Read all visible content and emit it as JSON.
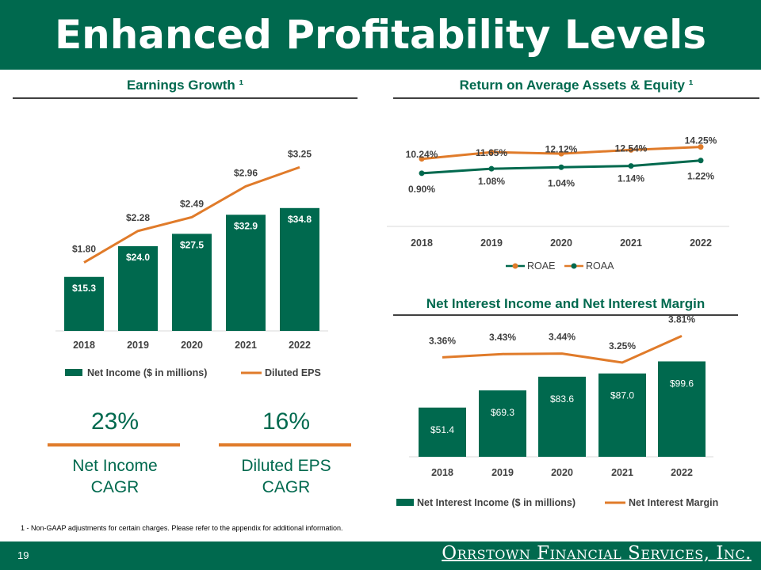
{
  "title": "Enhanced Profitability Levels",
  "page_number": "19",
  "footnote": "1 - Non-GAAP adjustments for certain charges. Please refer to the appendix for additional information.",
  "logo_text": "Orrstown Financial Services, Inc.",
  "colors": {
    "brand_green": "#00694e",
    "orange": "#e07b2a"
  },
  "cagr": [
    {
      "value": "23%",
      "label_line1": "Net Income",
      "label_line2": "CAGR"
    },
    {
      "value": "16%",
      "label_line1": "Diluted EPS",
      "label_line2": "CAGR"
    }
  ],
  "chart_data": [
    {
      "type": "bar+line",
      "title": "Earnings Growth ¹",
      "categories": [
        "2018",
        "2019",
        "2020",
        "2021",
        "2022"
      ],
      "series": [
        {
          "name": "Net Income ($ in millions)",
          "kind": "bar",
          "values": [
            15.3,
            24.0,
            27.5,
            32.9,
            34.8
          ],
          "labels": [
            "$15.3",
            "$24.0",
            "$27.5",
            "$32.9",
            "$34.8"
          ]
        },
        {
          "name": "Diluted EPS",
          "kind": "line",
          "values": [
            1.8,
            2.28,
            2.49,
            2.96,
            3.25
          ],
          "labels": [
            "$1.80",
            "$2.28",
            "$2.49",
            "$2.96",
            "$3.25"
          ]
        }
      ],
      "legend": "bottom"
    },
    {
      "type": "line",
      "title": "Return on Average Assets & Equity ¹",
      "categories": [
        "2018",
        "2019",
        "2020",
        "2021",
        "2022"
      ],
      "series": [
        {
          "name": "ROAE",
          "values": [
            10.24,
            11.65,
            12.12,
            12.54,
            14.25
          ],
          "labels": [
            "10.24%",
            "11.65%",
            "12.12%",
            "12.54%",
            "14.25%"
          ]
        },
        {
          "name": "ROAA",
          "values": [
            0.9,
            1.08,
            1.04,
            1.14,
            1.22
          ],
          "labels": [
            "0.90%",
            "1.08%",
            "1.04%",
            "1.14%",
            "1.22%"
          ]
        }
      ],
      "legend": "bottom"
    },
    {
      "type": "bar+line",
      "title": "Net Interest Income and Net Interest Margin",
      "categories": [
        "2018",
        "2019",
        "2020",
        "2021",
        "2022"
      ],
      "series": [
        {
          "name": "Net Interest Income ($ in millions)",
          "kind": "bar",
          "values": [
            51.4,
            69.3,
            83.6,
            87.0,
            99.6
          ],
          "labels": [
            "$51.4",
            "$69.3",
            "$83.6",
            "$87.0",
            "$99.6"
          ]
        },
        {
          "name": "Net Interest Margin",
          "kind": "line",
          "values": [
            3.36,
            3.43,
            3.44,
            3.25,
            3.81
          ],
          "labels": [
            "3.36%",
            "3.43%",
            "3.44%",
            "3.25%",
            "3.81%"
          ]
        }
      ],
      "legend": "bottom"
    }
  ]
}
